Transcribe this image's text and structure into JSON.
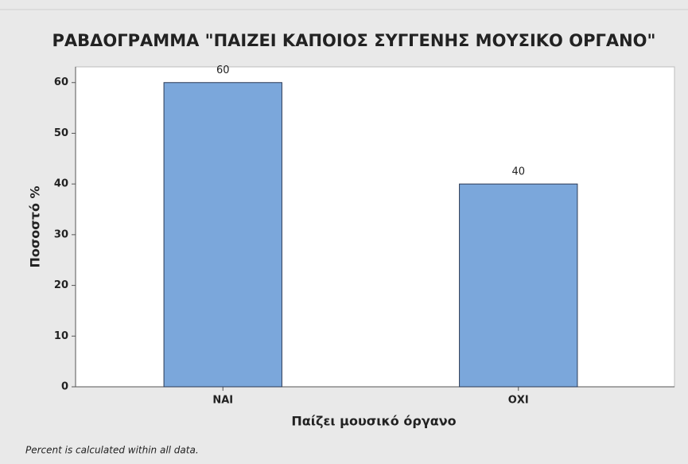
{
  "chart_data": {
    "type": "bar",
    "title": "ΡΑΒΔΟΓΡΑΜΜΑ \"ΠΑΙΖΕΙ ΚΑΠΟΙΟΣ ΣΥΓΓΕΝΗΣ ΜΟΥΣΙΚΟ ΟΡΓΑΝΟ\"",
    "x_label": "Παίζει μουσικό όργανο",
    "y_label": "Ποσοστό %",
    "footnote": "Percent is calculated within all data.",
    "categories": [
      "ΝΑΙ",
      "ΟΧΙ"
    ],
    "values": [
      60,
      40
    ],
    "color": "#7ba7db",
    "ylim": [
      0,
      63.1
    ],
    "yticks": [
      0,
      10,
      20,
      30,
      40,
      50,
      60
    ],
    "grid": false
  }
}
